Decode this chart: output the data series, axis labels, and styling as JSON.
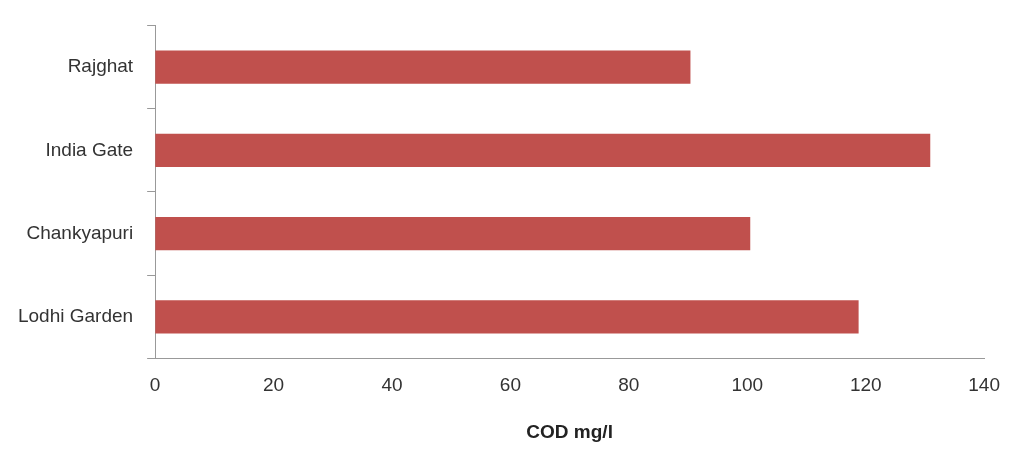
{
  "chart_data": {
    "type": "bar",
    "orientation": "horizontal",
    "xlabel": "COD mg/l",
    "categories": [
      "Rajghat",
      "India Gate",
      "Chankyapuri",
      "Lodhi Garden"
    ],
    "values": [
      90.4,
      130.9,
      100.5,
      118.8
    ],
    "color": "#c0504d",
    "xlim": [
      0,
      140
    ],
    "xticks": [
      0,
      20,
      40,
      60,
      80,
      100,
      120,
      140
    ],
    "grid": false,
    "legend": false
  }
}
